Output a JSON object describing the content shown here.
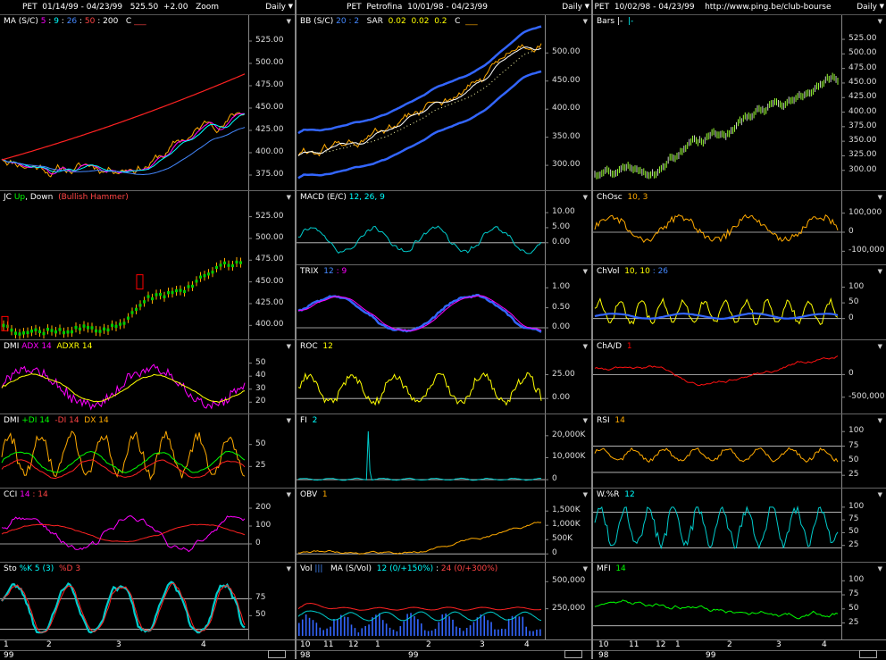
{
  "columns": [
    {
      "id": "c1",
      "header": "PET  01/14/99 - 04/23/99   525.50  +2.00   Zoom",
      "period": "Daily",
      "x_labels": [
        "1",
        "2",
        "3",
        "4"
      ],
      "years": [
        "99"
      ],
      "panels": [
        {
          "id": "ma",
          "title": [
            [
              "MA (S/C) ",
              "#fff"
            ],
            [
              "5",
              "#f0f"
            ],
            [
              " : ",
              "#fff"
            ],
            [
              "9",
              "#0ff"
            ],
            [
              " : ",
              "#fff"
            ],
            [
              "26",
              "#48f"
            ],
            [
              " : ",
              "#fff"
            ],
            [
              "50",
              "#f44"
            ],
            [
              " : ",
              "#fff"
            ],
            [
              "200",
              "#fff"
            ],
            [
              "   C ",
              "#fff"
            ],
            [
              "___",
              "#f44"
            ]
          ],
          "ticks": [
            "525.00",
            "500.00",
            "475.00",
            "450.00",
            "425.00",
            "400.00",
            "375.00"
          ],
          "range": [
            362,
            540
          ]
        },
        {
          "id": "jc",
          "title": [
            [
              "JC ",
              "#fff"
            ],
            [
              "Up",
              "#0f0"
            ],
            [
              ", ",
              "#fff"
            ],
            [
              "Down",
              "#fff"
            ],
            [
              "  (Bullish Hammer)",
              "#f44"
            ]
          ],
          "ticks": [
            "525.00",
            "500.00",
            "475.00",
            "450.00",
            "425.00",
            "400.00"
          ],
          "range": [
            388,
            540
          ]
        },
        {
          "id": "dmi1",
          "title": [
            [
              "DMI ",
              "#fff"
            ],
            [
              "ADX 14",
              "#f0f"
            ],
            [
              "  ADXR 14",
              "#ff0"
            ]
          ],
          "ticks": [
            "50",
            "40",
            "30",
            "20"
          ],
          "range": [
            14,
            58
          ]
        },
        {
          "id": "dmi2",
          "title": [
            [
              "DMI ",
              "#fff"
            ],
            [
              "+DI 14",
              "#0f0"
            ],
            [
              "  -DI 14",
              "#f44"
            ],
            [
              "  DX 14",
              "#fa0"
            ]
          ],
          "ticks": [
            "50",
            "25"
          ],
          "range": [
            5,
            70
          ]
        },
        {
          "id": "cci",
          "title": [
            [
              "CCI ",
              "#fff"
            ],
            [
              "14",
              "#f0f"
            ],
            [
              " : 14",
              "#f44"
            ]
          ],
          "ticks": [
            "200",
            "100",
            "0"
          ],
          "range": [
            -80,
            240
          ]
        },
        {
          "id": "sto",
          "title": [
            [
              "Sto ",
              "#fff"
            ],
            [
              "%K 5 (3)",
              "#0ff"
            ],
            [
              "  %D 3",
              "#f44"
            ]
          ],
          "ticks": [
            "75",
            "50"
          ],
          "range": [
            20,
            110
          ]
        }
      ]
    },
    {
      "id": "c2",
      "header": "PET  Petrofina  10/01/98 - 04/23/99",
      "period": "Daily",
      "x_labels": [
        "10",
        "11",
        "12",
        "1",
        "2",
        "3",
        "4"
      ],
      "years": [
        "98",
        "99"
      ],
      "panels": [
        {
          "id": "bb",
          "title": [
            [
              "BB (S/C) ",
              "#fff"
            ],
            [
              "20",
              "#48f"
            ],
            [
              " : 2",
              "#48f"
            ],
            [
              "   SAR  ",
              "#fff"
            ],
            [
              "0.02",
              "#ff0"
            ],
            [
              "  0.02",
              "#ff0"
            ],
            [
              "  0.2",
              "#ff0"
            ],
            [
              "   C  ",
              "#fff"
            ],
            [
              "___",
              "#fa0"
            ]
          ],
          "ticks": [
            "500.00",
            "450.00",
            "400.00",
            "350.00",
            "300.00"
          ],
          "range": [
            262,
            545
          ]
        },
        {
          "id": "macd",
          "title": [
            [
              "MACD (E/C) ",
              "#fff"
            ],
            [
              "12, 26, 9",
              "#0ff"
            ]
          ],
          "ticks": [
            "10.00",
            "5.00",
            "0.00"
          ],
          "range": [
            -6,
            13
          ]
        },
        {
          "id": "trix",
          "title": [
            [
              "TRIX  ",
              "#fff"
            ],
            [
              "12",
              "#48f"
            ],
            [
              " : 9",
              "#f0f"
            ]
          ],
          "ticks": [
            "1.00",
            "0.50",
            "0.00"
          ],
          "range": [
            -0.2,
            1.25
          ]
        },
        {
          "id": "roc",
          "title": [
            [
              "ROC  ",
              "#fff"
            ],
            [
              "12",
              "#ff0"
            ]
          ],
          "ticks": [
            "25.00",
            "0.00"
          ],
          "range": [
            -12,
            48
          ]
        },
        {
          "id": "fi",
          "title": [
            [
              "FI  ",
              "#fff"
            ],
            [
              "2",
              "#0ff"
            ]
          ],
          "ticks": [
            "20,000K",
            "10,000K",
            "0"
          ],
          "range": [
            -2000,
            24000
          ]
        },
        {
          "id": "obv",
          "title": [
            [
              "OBV  ",
              "#fff"
            ],
            [
              "1",
              "#fa0"
            ]
          ],
          "ticks": [
            "1,500K",
            "1,000K",
            "500K",
            "0"
          ],
          "range": [
            -150,
            1850
          ]
        },
        {
          "id": "vol",
          "title": [
            [
              "Vol ",
              "#fff"
            ],
            [
              "|||",
              "#48f"
            ],
            [
              "   MA (S/Vol)  ",
              "#fff"
            ],
            [
              "12 (0/+150%)",
              "#0ff"
            ],
            [
              " : ",
              "#fff"
            ],
            [
              "24 (0/+300%)",
              "#f44"
            ]
          ],
          "ticks": [
            "500,000",
            "250,000"
          ],
          "range": [
            0,
            560000
          ]
        }
      ]
    },
    {
      "id": "c3",
      "header": "PET  10/02/98 - 04/23/99    http://www.ping.be/club-bourse",
      "period": "Daily",
      "x_labels": [
        "10",
        "11",
        "12",
        "1",
        "2",
        "3",
        "4"
      ],
      "years": [
        "98",
        "99"
      ],
      "panels": [
        {
          "id": "bars",
          "title": [
            [
              "Bars ",
              "#fff"
            ],
            [
              "|-",
              "#fff"
            ],
            [
              "  |-",
              "#0ff"
            ]
          ],
          "ticks": [
            "525.00",
            "500.00",
            "475.00",
            "450.00",
            "425.00",
            "400.00",
            "375.00",
            "350.00",
            "325.00",
            "300.00"
          ],
          "range": [
            272,
            545
          ]
        },
        {
          "id": "chosc",
          "title": [
            [
              "ChOsc  ",
              "#fff"
            ],
            [
              "10, 3",
              "#fa0"
            ]
          ],
          "ticks": [
            "100,000",
            "0",
            "-100,000"
          ],
          "range": [
            -150000,
            150000
          ]
        },
        {
          "id": "chvol",
          "title": [
            [
              "ChVol  ",
              "#fff"
            ],
            [
              "10, 10",
              "#ff0"
            ],
            [
              " : 26",
              "#48f"
            ]
          ],
          "ticks": [
            "100",
            "50",
            "0"
          ],
          "range": [
            -55,
            130
          ]
        },
        {
          "id": "chad",
          "title": [
            [
              "ChA/D  ",
              "#fff"
            ],
            [
              "1",
              "#f00"
            ]
          ],
          "ticks": [
            "0",
            "-500,000"
          ],
          "range": [
            -780000,
            480000
          ]
        },
        {
          "id": "rsi",
          "title": [
            [
              "RSI  ",
              "#fff"
            ],
            [
              "14",
              "#fa0"
            ]
          ],
          "ticks": [
            "100",
            "75",
            "50",
            "25"
          ],
          "range": [
            10,
            108
          ]
        },
        {
          "id": "wr",
          "title": [
            [
              "W.%R  ",
              "#fff"
            ],
            [
              "12",
              "#0ff"
            ]
          ],
          "ticks": [
            "100",
            "75",
            "50",
            "25"
          ],
          "range": [
            0,
            112
          ]
        },
        {
          "id": "mfi",
          "title": [
            [
              "MFI  ",
              "#fff"
            ],
            [
              "14",
              "#0f0"
            ]
          ],
          "ticks": [
            "100",
            "75",
            "50",
            "25"
          ],
          "range": [
            2,
            110
          ]
        }
      ]
    }
  ]
}
